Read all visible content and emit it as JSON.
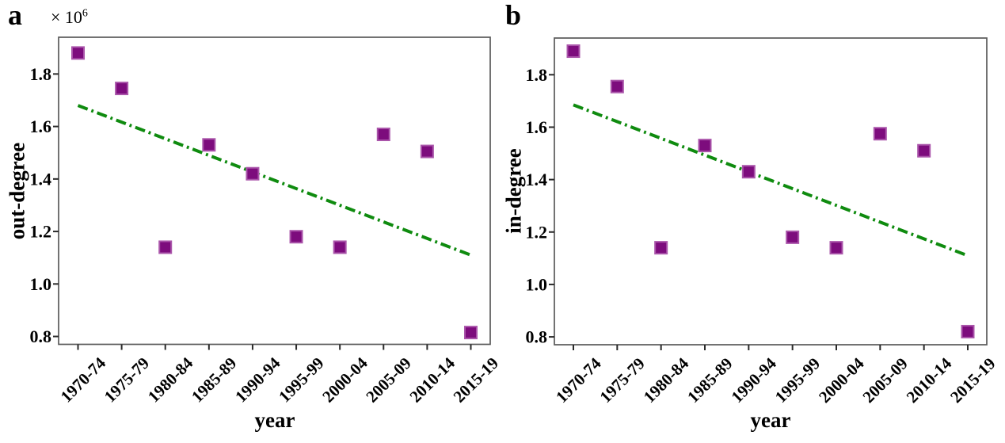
{
  "figure": {
    "background": "#ffffff",
    "spine_color": "#5a5a5a",
    "tick_color": "#2a2a2a"
  },
  "chart_data": [
    {
      "panel_label": "a",
      "type": "scatter",
      "title": "",
      "xlabel": "year",
      "ylabel": "out-degree",
      "y_offset_base": "× 10",
      "y_offset_exp": "6",
      "categories": [
        "1970-74",
        "1975-79",
        "1980-84",
        "1985-89",
        "1990-94",
        "1995-99",
        "2000-04",
        "2005-09",
        "2010-14",
        "2015-19"
      ],
      "values": [
        1.88,
        1.745,
        1.14,
        1.53,
        1.42,
        1.18,
        1.14,
        1.57,
        1.505,
        0.815
      ],
      "marker": {
        "shape": "square",
        "color": "#7d0c7d",
        "edge_color": "#aa55aa"
      },
      "trend_line": {
        "style": "dashdot",
        "color": "#0f8b0f",
        "start_value": 1.68,
        "end_value": 1.11
      },
      "ylim": [
        0.77,
        1.94
      ],
      "yticks": [
        0.8,
        1.0,
        1.2,
        1.4,
        1.6,
        1.8
      ],
      "ytick_labels": [
        "0.8",
        "1.0",
        "1.2",
        "1.4",
        "1.6",
        "1.8"
      ],
      "grid": false,
      "legend": null
    },
    {
      "panel_label": "b",
      "type": "scatter",
      "title": "",
      "xlabel": "year",
      "ylabel": "in-degree",
      "categories": [
        "1970-74",
        "1975-79",
        "1980-84",
        "1985-89",
        "1990-94",
        "1995-99",
        "2000-04",
        "2005-09",
        "2010-14",
        "2015-19"
      ],
      "values": [
        1.89,
        1.755,
        1.14,
        1.53,
        1.43,
        1.18,
        1.14,
        1.575,
        1.51,
        0.82
      ],
      "marker": {
        "shape": "square",
        "color": "#7d0c7d",
        "edge_color": "#aa55aa"
      },
      "trend_line": {
        "style": "dashdot",
        "color": "#0f8b0f",
        "start_value": 1.685,
        "end_value": 1.11
      },
      "ylim": [
        0.77,
        1.94
      ],
      "yticks": [
        0.8,
        1.0,
        1.2,
        1.4,
        1.6,
        1.8
      ],
      "ytick_labels": [
        "0.8",
        "1.0",
        "1.2",
        "1.4",
        "1.6",
        "1.8"
      ],
      "grid": false,
      "legend": null
    }
  ]
}
